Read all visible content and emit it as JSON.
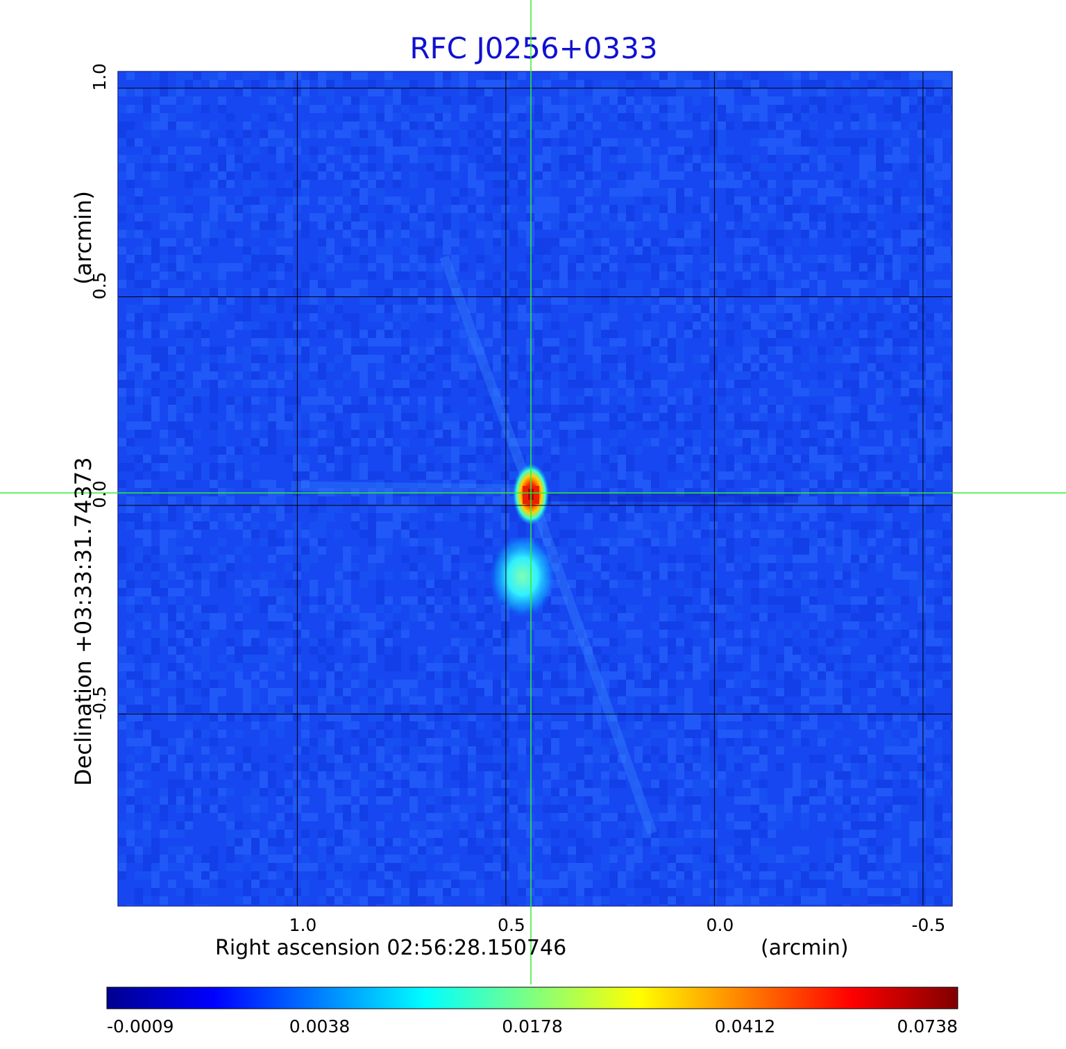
{
  "chart_data": {
    "type": "heatmap",
    "title": "RFC J0256+0333",
    "xlabel": "Right ascension  02:56:28.150746",
    "xunit": "(arcmin)",
    "ylabel": "Declination  +03:33:31.74373",
    "yunit": "(arcmin)",
    "xlim": [
      1.43,
      -0.57
    ],
    "ylim": [
      -0.96,
      1.04
    ],
    "x_ticks": [
      1.0,
      0.5,
      0.0,
      -0.5
    ],
    "x_tick_labels": [
      "1.0",
      "0.5",
      "0.0",
      "-0.5"
    ],
    "y_ticks": [
      -0.5,
      0.0,
      0.5,
      1.0
    ],
    "y_tick_labels": [
      "-0.5",
      "0.0",
      "0.5",
      "1.0"
    ],
    "grid": true,
    "crosshair": {
      "x": 0.44,
      "y": 0.03
    },
    "colorbar": {
      "tick_labels": [
        "-0.0009",
        "0.0038",
        "0.0178",
        "0.0412",
        "0.0738"
      ],
      "colormap": "jet"
    },
    "peak": {
      "x": 0.44,
      "y": 0.03,
      "value": 0.0738
    },
    "secondary_component": {
      "x": 0.46,
      "y": -0.17
    },
    "colors": {
      "title": "#1010d0",
      "grid": "#000000",
      "crosshair": "#33ee33",
      "background_level": "#1747f0"
    }
  }
}
